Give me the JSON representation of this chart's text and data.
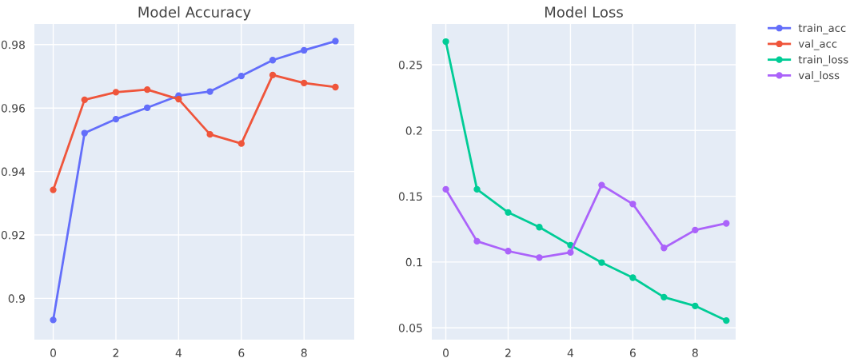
{
  "chart_data": [
    {
      "type": "line",
      "title": "Model Accuracy",
      "x": [
        0,
        1,
        2,
        3,
        4,
        5,
        6,
        7,
        8,
        9
      ],
      "series": [
        {
          "name": "train_acc",
          "color": "#636efa",
          "values": [
            0.8932,
            0.9521,
            0.9565,
            0.9601,
            0.9639,
            0.9652,
            0.9701,
            0.9751,
            0.9782,
            0.9811
          ]
        },
        {
          "name": "val_acc",
          "color": "#ef553b",
          "values": [
            0.9342,
            0.9626,
            0.965,
            0.9658,
            0.9628,
            0.9517,
            0.9488,
            0.9704,
            0.9679,
            0.9666
          ]
        }
      ],
      "xlim": [
        -0.6,
        9.6
      ],
      "ylim": [
        0.887,
        0.9865
      ],
      "xticks": [
        0,
        2,
        4,
        6,
        8
      ],
      "yticks": [
        {
          "value": 0.9,
          "label": "0.9"
        },
        0.92,
        0.94,
        0.96,
        0.98
      ],
      "grid": true,
      "marker": "circle",
      "line_style": "solid",
      "legend": "top right"
    },
    {
      "type": "line",
      "title": "Model Loss",
      "x": [
        0,
        1,
        2,
        3,
        4,
        5,
        6,
        7,
        8,
        9
      ],
      "series": [
        {
          "name": "train_loss",
          "color": "#00cc96",
          "values": [
            0.2676,
            0.1553,
            0.1377,
            0.1265,
            0.1128,
            0.0996,
            0.0881,
            0.0733,
            0.0666,
            0.0555
          ]
        },
        {
          "name": "val_loss",
          "color": "#ab63fa",
          "values": [
            0.1553,
            0.1158,
            0.1083,
            0.1034,
            0.1073,
            0.1585,
            0.1441,
            0.1107,
            0.1243,
            0.1294
          ]
        }
      ],
      "xlim": [
        -0.45,
        9.3
      ],
      "ylim": [
        0.041,
        0.281
      ],
      "xticks": [
        0,
        2,
        4,
        6,
        8
      ],
      "yticks": [
        0.05,
        {
          "value": 0.1,
          "label": "0.1"
        },
        0.15,
        {
          "value": 0.2,
          "label": "0.2"
        },
        0.25
      ],
      "grid": true,
      "marker": "circle",
      "line_style": "solid",
      "legend": "top right"
    }
  ]
}
